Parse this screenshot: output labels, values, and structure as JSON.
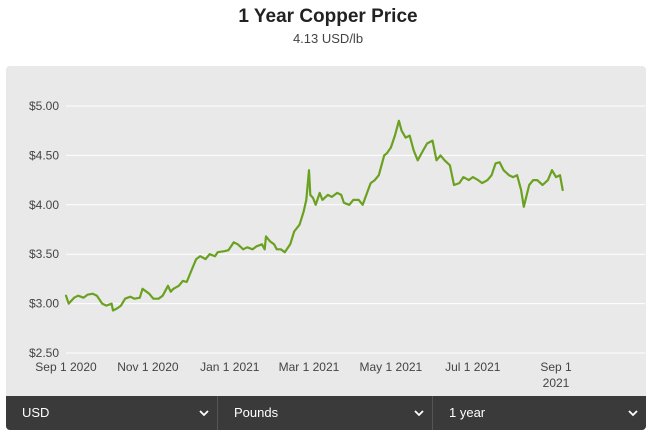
{
  "header": {
    "title": "1 Year Copper Price",
    "subtitle": "4.13 USD/lb"
  },
  "controls": {
    "currency": "USD",
    "unit": "Pounds",
    "period": "1 year"
  },
  "colors": {
    "line": "#6aa121",
    "panel": "#e9e9e9",
    "grid": "#ffffff",
    "controls_bg": "#3a3a3a"
  },
  "chart_data": {
    "type": "line",
    "title": "1 Year Copper Price",
    "xlabel": "",
    "ylabel": "",
    "y_ticks": [
      "$2.50",
      "$3.00",
      "$3.50",
      "$4.00",
      "$4.50",
      "$5.00"
    ],
    "y_tick_values": [
      2.5,
      3.0,
      3.5,
      4.0,
      4.5,
      5.0
    ],
    "ylim": [
      2.5,
      5.0
    ],
    "x_ticks": [
      {
        "date": "2020-09-01",
        "label": "Sep 1 2020"
      },
      {
        "date": "2020-11-01",
        "label": "Nov 1 2020"
      },
      {
        "date": "2021-01-01",
        "label": "Jan 1 2021"
      },
      {
        "date": "2021-03-01",
        "label": "Mar 1 2021"
      },
      {
        "date": "2021-05-01",
        "label": "May 1 2021"
      },
      {
        "date": "2021-07-01",
        "label": "Jul 1 2021"
      },
      {
        "date": "2021-09-01",
        "label": "Sep 1\n2021"
      }
    ],
    "grid": true,
    "series": [
      {
        "name": "",
        "points": [
          [
            "2020-09-01",
            3.08
          ],
          [
            "2020-09-03",
            3.0
          ],
          [
            "2020-09-07",
            3.06
          ],
          [
            "2020-09-10",
            3.08
          ],
          [
            "2020-09-14",
            3.06
          ],
          [
            "2020-09-17",
            3.09
          ],
          [
            "2020-09-21",
            3.1
          ],
          [
            "2020-09-24",
            3.08
          ],
          [
            "2020-09-28",
            3.0
          ],
          [
            "2020-10-01",
            2.98
          ],
          [
            "2020-10-05",
            3.0
          ],
          [
            "2020-10-06",
            2.93
          ],
          [
            "2020-10-09",
            2.95
          ],
          [
            "2020-10-12",
            2.98
          ],
          [
            "2020-10-15",
            3.05
          ],
          [
            "2020-10-19",
            3.07
          ],
          [
            "2020-10-22",
            3.05
          ],
          [
            "2020-10-26",
            3.06
          ],
          [
            "2020-10-28",
            3.15
          ],
          [
            "2020-11-02",
            3.1
          ],
          [
            "2020-11-05",
            3.05
          ],
          [
            "2020-11-09",
            3.05
          ],
          [
            "2020-11-12",
            3.08
          ],
          [
            "2020-11-16",
            3.18
          ],
          [
            "2020-11-18",
            3.12
          ],
          [
            "2020-11-20",
            3.15
          ],
          [
            "2020-11-24",
            3.18
          ],
          [
            "2020-11-27",
            3.23
          ],
          [
            "2020-11-30",
            3.22
          ],
          [
            "2020-12-03",
            3.32
          ],
          [
            "2020-12-07",
            3.45
          ],
          [
            "2020-12-10",
            3.48
          ],
          [
            "2020-12-14",
            3.45
          ],
          [
            "2020-12-17",
            3.5
          ],
          [
            "2020-12-21",
            3.48
          ],
          [
            "2020-12-23",
            3.52
          ],
          [
            "2020-12-28",
            3.53
          ],
          [
            "2020-12-31",
            3.54
          ],
          [
            "2021-01-04",
            3.62
          ],
          [
            "2021-01-07",
            3.6
          ],
          [
            "2021-01-11",
            3.55
          ],
          [
            "2021-01-14",
            3.57
          ],
          [
            "2021-01-18",
            3.55
          ],
          [
            "2021-01-21",
            3.58
          ],
          [
            "2021-01-25",
            3.6
          ],
          [
            "2021-01-27",
            3.55
          ],
          [
            "2021-01-28",
            3.68
          ],
          [
            "2021-01-31",
            3.63
          ],
          [
            "2021-02-03",
            3.6
          ],
          [
            "2021-02-05",
            3.55
          ],
          [
            "2021-02-08",
            3.55
          ],
          [
            "2021-02-11",
            3.52
          ],
          [
            "2021-02-15",
            3.6
          ],
          [
            "2021-02-18",
            3.73
          ],
          [
            "2021-02-22",
            3.8
          ],
          [
            "2021-02-25",
            3.93
          ],
          [
            "2021-02-27",
            4.05
          ],
          [
            "2021-03-01",
            4.35
          ],
          [
            "2021-03-02",
            4.1
          ],
          [
            "2021-03-04",
            4.07
          ],
          [
            "2021-03-06",
            4.0
          ],
          [
            "2021-03-09",
            4.12
          ],
          [
            "2021-03-11",
            4.05
          ],
          [
            "2021-03-15",
            4.1
          ],
          [
            "2021-03-18",
            4.08
          ],
          [
            "2021-03-22",
            4.12
          ],
          [
            "2021-03-25",
            4.1
          ],
          [
            "2021-03-27",
            4.02
          ],
          [
            "2021-03-31",
            4.0
          ],
          [
            "2021-04-03",
            4.05
          ],
          [
            "2021-04-07",
            4.05
          ],
          [
            "2021-04-10",
            4.0
          ],
          [
            "2021-04-14",
            4.15
          ],
          [
            "2021-04-16",
            4.22
          ],
          [
            "2021-04-19",
            4.25
          ],
          [
            "2021-04-22",
            4.3
          ],
          [
            "2021-04-26",
            4.5
          ],
          [
            "2021-04-28",
            4.52
          ],
          [
            "2021-05-01",
            4.58
          ],
          [
            "2021-05-04",
            4.7
          ],
          [
            "2021-05-07",
            4.85
          ],
          [
            "2021-05-09",
            4.75
          ],
          [
            "2021-05-12",
            4.68
          ],
          [
            "2021-05-15",
            4.7
          ],
          [
            "2021-05-18",
            4.55
          ],
          [
            "2021-05-21",
            4.45
          ],
          [
            "2021-05-25",
            4.55
          ],
          [
            "2021-05-28",
            4.62
          ],
          [
            "2021-06-01",
            4.65
          ],
          [
            "2021-06-04",
            4.45
          ],
          [
            "2021-06-07",
            4.5
          ],
          [
            "2021-06-10",
            4.45
          ],
          [
            "2021-06-14",
            4.4
          ],
          [
            "2021-06-17",
            4.2
          ],
          [
            "2021-06-21",
            4.22
          ],
          [
            "2021-06-24",
            4.28
          ],
          [
            "2021-06-28",
            4.25
          ],
          [
            "2021-07-01",
            4.28
          ],
          [
            "2021-07-05",
            4.25
          ],
          [
            "2021-07-08",
            4.22
          ],
          [
            "2021-07-12",
            4.25
          ],
          [
            "2021-07-15",
            4.3
          ],
          [
            "2021-07-18",
            4.42
          ],
          [
            "2021-07-21",
            4.43
          ],
          [
            "2021-07-24",
            4.35
          ],
          [
            "2021-07-28",
            4.3
          ],
          [
            "2021-07-31",
            4.28
          ],
          [
            "2021-08-03",
            4.3
          ],
          [
            "2021-08-06",
            4.15
          ],
          [
            "2021-08-08",
            3.98
          ],
          [
            "2021-08-12",
            4.2
          ],
          [
            "2021-08-15",
            4.25
          ],
          [
            "2021-08-18",
            4.25
          ],
          [
            "2021-08-22",
            4.2
          ],
          [
            "2021-08-26",
            4.25
          ],
          [
            "2021-08-29",
            4.35
          ],
          [
            "2021-09-01",
            4.28
          ],
          [
            "2021-09-04",
            4.3
          ],
          [
            "2021-09-06",
            4.15
          ]
        ]
      }
    ]
  }
}
